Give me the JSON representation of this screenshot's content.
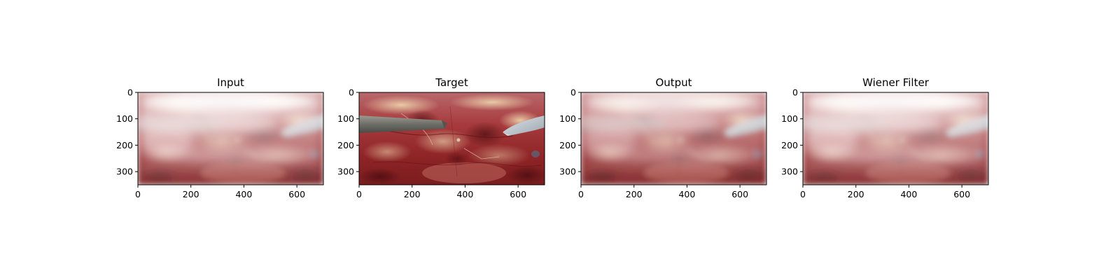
{
  "figure": {
    "panels": [
      {
        "key": "input",
        "title": "Input"
      },
      {
        "key": "target",
        "title": "Target"
      },
      {
        "key": "output",
        "title": "Output"
      },
      {
        "key": "wiener",
        "title": "Wiener Filter"
      }
    ],
    "axes": {
      "x_ticks": [
        0,
        200,
        400,
        600
      ],
      "y_ticks": [
        0,
        100,
        200,
        300
      ],
      "x_range": [
        0,
        700
      ],
      "y_range": [
        0,
        350
      ]
    }
  }
}
